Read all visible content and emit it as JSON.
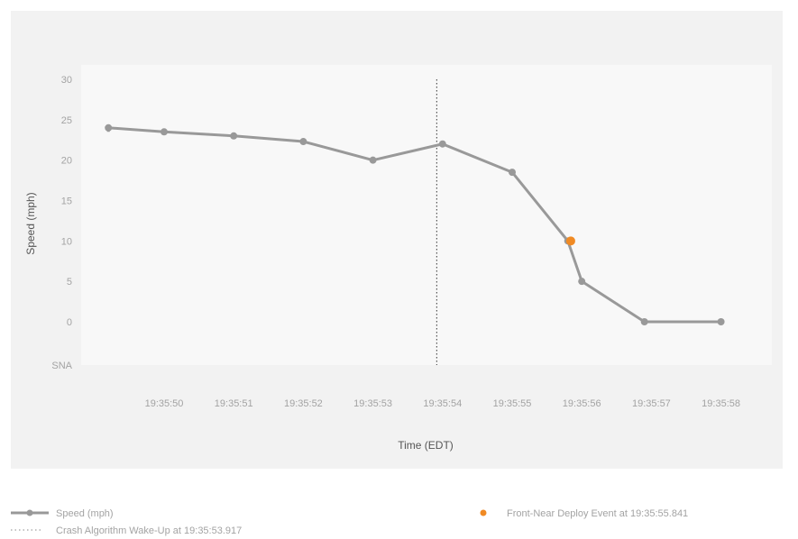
{
  "chart_data": {
    "type": "line",
    "title": "",
    "xlabel": "Time (EDT)",
    "ylabel": "Speed (mph)",
    "x_tick_labels": [
      "19:35:50",
      "19:35:51",
      "19:35:52",
      "19:35:53",
      "19:35:54",
      "19:35:55",
      "19:35:56",
      "19:35:57",
      "19:35:58"
    ],
    "y_tick_labels": [
      "30",
      "25",
      "20",
      "15",
      "10",
      "5",
      "0",
      "SNA"
    ],
    "ylim": [
      0,
      30
    ],
    "grid": false,
    "series": [
      {
        "name": "Speed (mph)",
        "color": "#999999",
        "points": [
          {
            "t": "19:35:49.2",
            "v": 23.5
          },
          {
            "t": "19:35:49.2",
            "v": 24.0
          },
          {
            "t": "19:35:50.0",
            "v": 23.5
          },
          {
            "t": "19:35:51.0",
            "v": 23.0
          },
          {
            "t": "19:35:52.0",
            "v": 22.3
          },
          {
            "t": "19:35:53.0",
            "v": 20.0
          },
          {
            "t": "19:35:54.0",
            "v": 22.0
          },
          {
            "t": "19:35:55.0",
            "v": 18.5
          },
          {
            "t": "19:35:55.8",
            "v": 10.0
          },
          {
            "t": "19:35:56.0",
            "v": 5.0
          },
          {
            "t": "19:35:56.9",
            "v": 0.0
          },
          {
            "t": "19:35:58.0",
            "v": 0.0
          }
        ]
      }
    ],
    "annotations": [
      {
        "label": "Crash Algorithm Wake-Up at 19:35:53.917",
        "type": "vertical-dotted-line",
        "t": "19:35:53.917",
        "color": "#555555"
      },
      {
        "label": "Front-Near Deploy Event at 19:35:55.841",
        "type": "point",
        "t": "19:35:55.841",
        "v": 10.0,
        "color": "#f08a24"
      }
    ],
    "legend": {
      "placement": "bottom",
      "entries": [
        "Speed (mph)",
        "Crash Algorithm Wake-Up at 19:35:53.917",
        "Front-Near Deploy Event at 19:35:55.841"
      ]
    }
  }
}
